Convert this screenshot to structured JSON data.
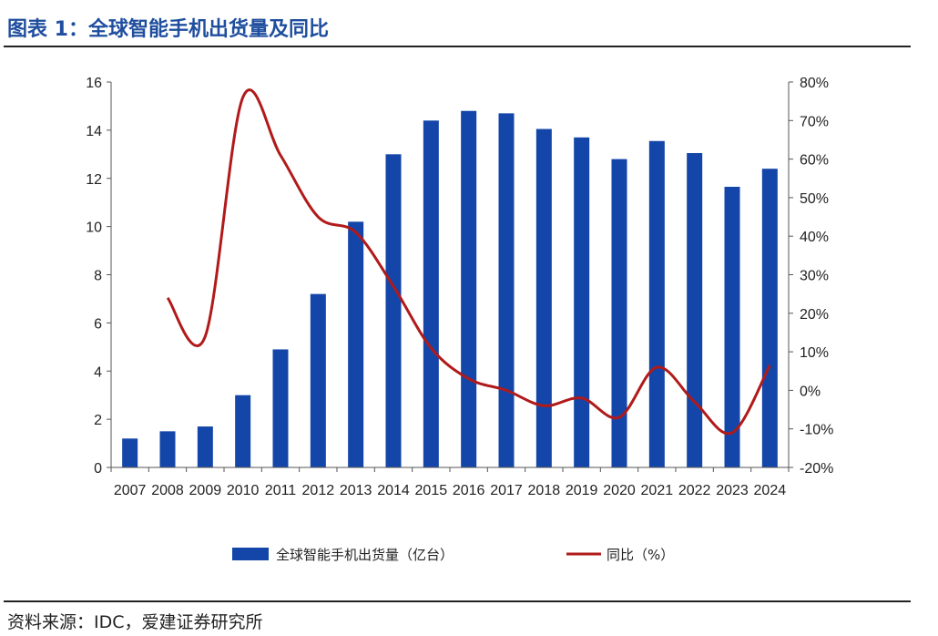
{
  "title": "图表 1：全球智能手机出货量及同比",
  "source": "资料来源：IDC，爱建证券研究所",
  "colors": {
    "bar": "#1346a8",
    "line": "#b11a1a",
    "title": "#1f4e9e"
  },
  "chart_data": {
    "type": "bar+line",
    "categories": [
      "2007",
      "2008",
      "2009",
      "2010",
      "2011",
      "2012",
      "2013",
      "2014",
      "2015",
      "2016",
      "2017",
      "2018",
      "2019",
      "2020",
      "2021",
      "2022",
      "2023",
      "2024"
    ],
    "series": [
      {
        "name": "全球智能手机出货量（亿台）",
        "type": "bar",
        "axis": "left",
        "values": [
          1.2,
          1.5,
          1.7,
          3.0,
          4.9,
          7.2,
          10.2,
          13.0,
          14.4,
          14.8,
          14.7,
          14.05,
          13.7,
          12.8,
          13.55,
          13.05,
          11.65,
          12.4
        ]
      },
      {
        "name": "同比（%）",
        "type": "line",
        "axis": "right",
        "values": [
          null,
          24,
          14,
          76,
          61,
          45,
          41,
          27,
          11,
          3,
          0,
          -4,
          -2,
          -7,
          6,
          -3,
          -11,
          6.5
        ]
      }
    ],
    "y_left": {
      "min": 0,
      "max": 16,
      "ticks": [
        "0",
        "2",
        "4",
        "6",
        "8",
        "10",
        "12",
        "14",
        "16"
      ]
    },
    "y_right": {
      "min": -20,
      "max": 80,
      "ticks": [
        "-20%",
        "-10%",
        "0%",
        "10%",
        "20%",
        "30%",
        "40%",
        "50%",
        "60%",
        "70%",
        "80%"
      ]
    }
  }
}
